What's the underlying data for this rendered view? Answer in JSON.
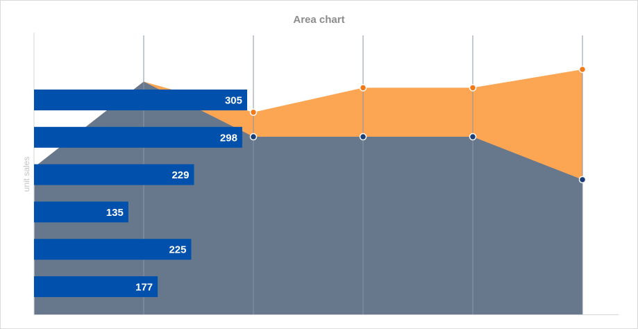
{
  "chart_data": {
    "type": "area",
    "title": "Area chart",
    "ylabel": "unit sales",
    "xlabel": "",
    "grid": true,
    "area_series": [
      {
        "values": [
          120,
          190,
          145,
          145,
          145,
          110
        ],
        "color": "#4a7fc1"
      },
      {
        "values": [
          120,
          190,
          165,
          185,
          185,
          200
        ],
        "color": "#fca654"
      }
    ],
    "bar_series": {
      "values": [
        305,
        298,
        229,
        135,
        225,
        177
      ],
      "color": "#0150ab",
      "label_color": "#ffffff"
    },
    "colors": {
      "overlap": "#67788d",
      "grid": "#8795a6",
      "axis": "#d6d6d6",
      "orange_marker": "#f07b1b",
      "blue_marker": "#1a3e77",
      "marker_stroke": "#ffffff"
    }
  }
}
